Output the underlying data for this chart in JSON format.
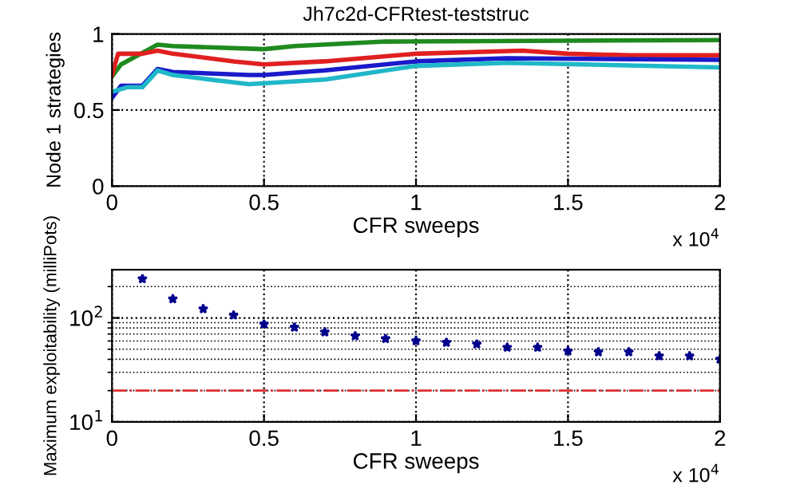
{
  "chart_data": [
    {
      "type": "line",
      "title": "Jh7c2d-CFRtest-teststruc",
      "xlabel": "CFR sweeps",
      "ylabel": "Node 1 strategies",
      "annotations": [
        "x 10$^{4}$"
      ],
      "xlim": [
        0,
        2
      ],
      "xticks": [
        0,
        0.5,
        1,
        1.5,
        2
      ],
      "ylim": [
        0,
        1
      ],
      "yticks": [
        0,
        0.5,
        1
      ],
      "grid": true,
      "line_style": "solid",
      "series": [
        {
          "color": "#1f8a1f",
          "x": [
            0,
            0.03,
            0.15,
            0.2,
            0.5,
            0.6,
            0.9,
            2
          ],
          "values": [
            0.72,
            0.8,
            0.93,
            0.92,
            0.9,
            0.92,
            0.95,
            0.96
          ]
        },
        {
          "color": "#e02020",
          "x": [
            0,
            0.02,
            0.1,
            0.15,
            0.2,
            0.4,
            0.5,
            0.7,
            1,
            1.35,
            1.5,
            1.7,
            2
          ],
          "values": [
            0.73,
            0.87,
            0.87,
            0.89,
            0.87,
            0.82,
            0.8,
            0.82,
            0.87,
            0.89,
            0.87,
            0.86,
            0.86
          ]
        },
        {
          "color": "#1a1aca",
          "x": [
            0,
            0.03,
            0.1,
            0.15,
            0.2,
            0.45,
            0.5,
            0.7,
            1,
            1.3,
            2
          ],
          "values": [
            0.58,
            0.66,
            0.66,
            0.77,
            0.75,
            0.73,
            0.73,
            0.76,
            0.82,
            0.84,
            0.83
          ]
        },
        {
          "color": "#20b8c8",
          "x": [
            0,
            0.05,
            0.1,
            0.15,
            0.2,
            0.45,
            0.7,
            1,
            1.3,
            2
          ],
          "values": [
            0.62,
            0.65,
            0.65,
            0.76,
            0.73,
            0.67,
            0.7,
            0.79,
            0.81,
            0.78
          ]
        }
      ]
    },
    {
      "type": "scatter",
      "xlabel": "CFR sweeps",
      "ylabel": "Maximum exploitability (milliPots)",
      "annotations": [
        "x 10$^{4}$"
      ],
      "xlim": [
        0,
        2
      ],
      "xticks": [
        0,
        0.5,
        1,
        1.5,
        2
      ],
      "log": "y",
      "ylim": [
        10,
        290
      ],
      "yticks": [
        {
          "value": 10,
          "label": "10$^{1}$"
        },
        {
          "value": 100,
          "label": "10$^{2}$"
        }
      ],
      "grid": true,
      "marker": "star",
      "ref_lines": [
        {
          "axis": "y",
          "value": 20,
          "color": "#e03030",
          "line_style": "dashdot"
        }
      ],
      "series": [
        {
          "color": "#00008b",
          "x": [
            0.1,
            0.2,
            0.3,
            0.4,
            0.5,
            0.6,
            0.7,
            0.8,
            0.9,
            1.0,
            1.1,
            1.2,
            1.3,
            1.4,
            1.5,
            1.6,
            1.7,
            1.8,
            1.9,
            2.0
          ],
          "values": [
            237,
            152,
            122,
            106,
            87,
            81,
            73,
            67,
            63,
            60,
            58,
            56,
            52,
            52,
            48,
            47,
            47,
            43,
            43,
            40
          ]
        }
      ]
    }
  ]
}
